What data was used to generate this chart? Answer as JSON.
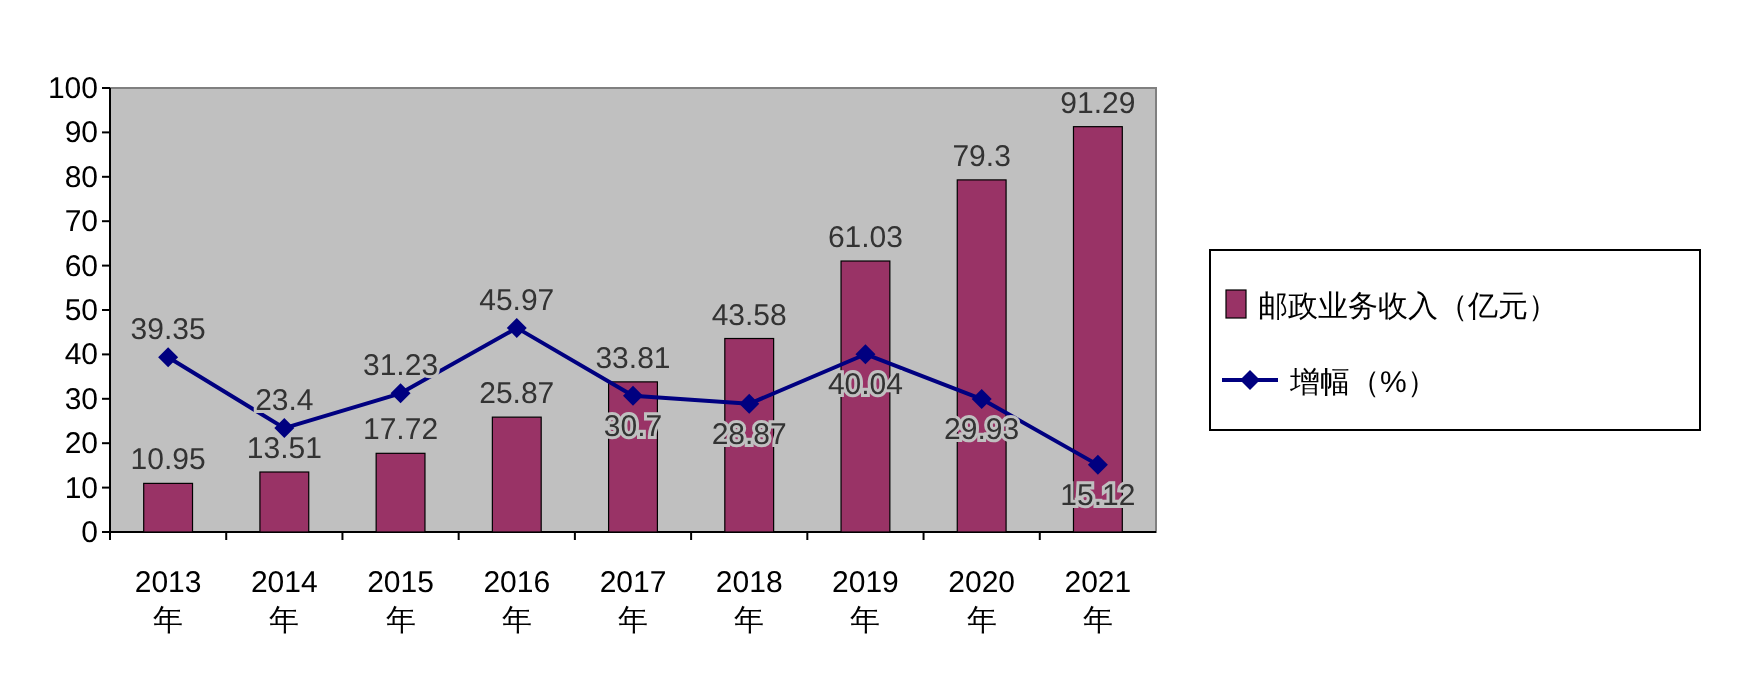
{
  "chart_data": {
    "type": "bar",
    "categories": [
      "2013\n年",
      "2014\n年",
      "2015\n年",
      "2016\n年",
      "2017\n年",
      "2018\n年",
      "2019\n年",
      "2020\n年",
      "2021\n年"
    ],
    "series": [
      {
        "name": "邮政业务收入（亿元）",
        "color": "#993366",
        "values": [
          10.95,
          13.51,
          17.72,
          25.87,
          33.81,
          43.58,
          61.03,
          79.3,
          91.29
        ]
      },
      {
        "name": "增幅（%）",
        "type": "line",
        "color": "#000080",
        "marker": "diamond",
        "values": [
          39.35,
          23.4,
          31.23,
          45.97,
          30.7,
          28.87,
          40.04,
          29.93,
          15.12
        ]
      }
    ],
    "ylim": [
      0,
      100
    ],
    "yticks": [
      0,
      10,
      20,
      30,
      40,
      50,
      60,
      70,
      80,
      90,
      100
    ],
    "grid": false,
    "legend": "right",
    "data_labels": true
  }
}
